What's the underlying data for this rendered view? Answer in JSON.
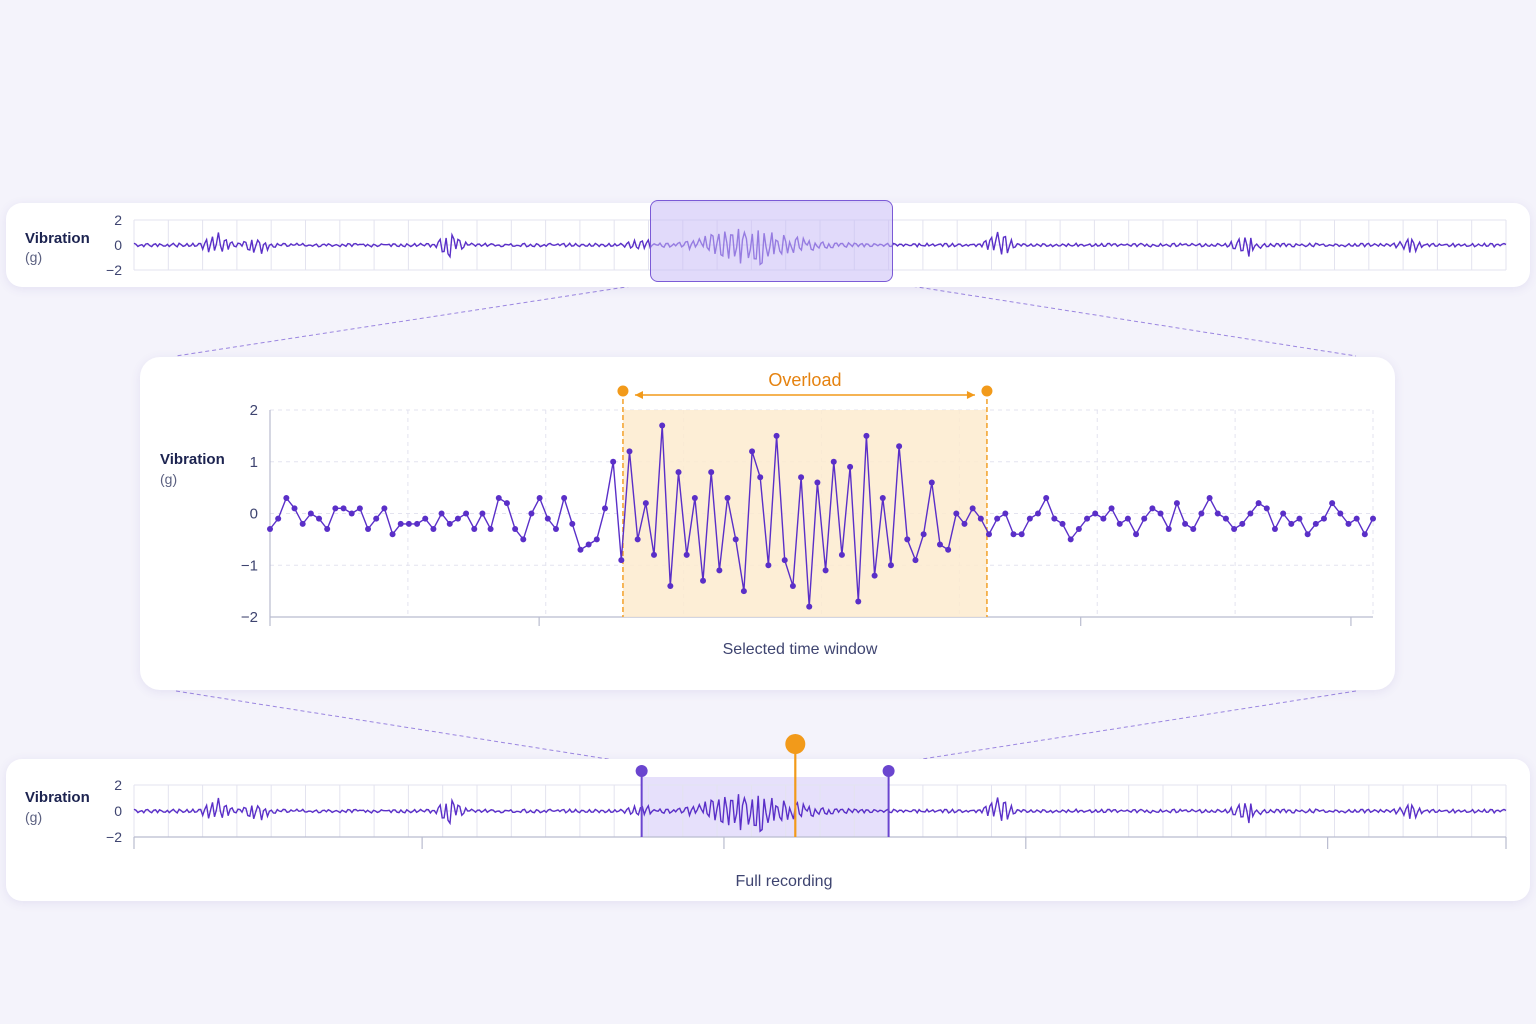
{
  "colors": {
    "signal": "#5a2fc8",
    "selection_fill": "#e6e0fb",
    "selection_border": "#7b5ad6",
    "overload": "#f29a1a",
    "overload_fill": "#fdebcf",
    "grid": "#e3e3ef",
    "axis": "#b9bccf",
    "connector": "#9b86e0"
  },
  "top_overview": {
    "ylabel": "Vibration",
    "unit": "(g)",
    "yticks": [
      "2",
      "0",
      "−2"
    ]
  },
  "detail": {
    "ylabel": "Vibration",
    "unit": "(g)",
    "caption": "Selected time window",
    "annotation": "Overload"
  },
  "full_recording": {
    "ylabel": "Vibration",
    "unit": "(g)",
    "yticks": [
      "2",
      "0",
      "−2"
    ],
    "caption": "Full recording"
  },
  "chart_data": [
    {
      "type": "line",
      "panel": "top overview",
      "ylabel": "Vibration (g)",
      "ylim": [
        -2,
        2
      ],
      "yticks": [
        2,
        0,
        -2
      ],
      "grid": true,
      "highlighted_window": "selected time window (boxed)",
      "bursts_relative_position": [
        0.06,
        0.09,
        0.23,
        0.37,
        0.45,
        0.63,
        0.81,
        0.93
      ],
      "burst_amplitude_g": [
        1.0,
        0.7,
        0.9,
        0.4,
        1.6,
        1.1,
        1.0,
        0.5
      ],
      "baseline_noise_g": 0.15
    },
    {
      "type": "line",
      "panel": "selected time window",
      "ylabel": "Vibration (g)",
      "ylim": [
        -2,
        2
      ],
      "yticks": [
        2,
        1,
        0,
        -1,
        -2
      ],
      "grid": true,
      "markers": true,
      "y": [
        -0.3,
        -0.1,
        0.3,
        0.1,
        -0.2,
        0.0,
        -0.1,
        -0.3,
        0.1,
        0.1,
        0.0,
        0.1,
        -0.3,
        -0.1,
        0.1,
        -0.4,
        -0.2,
        -0.2,
        -0.2,
        -0.1,
        -0.3,
        0.0,
        -0.2,
        -0.1,
        0.0,
        -0.3,
        0.0,
        -0.3,
        0.3,
        0.2,
        -0.3,
        -0.5,
        0.0,
        0.3,
        -0.1,
        -0.3,
        0.3,
        -0.2,
        -0.7,
        -0.6,
        -0.5,
        0.1,
        1.0,
        -0.9,
        1.2,
        -0.5,
        0.2,
        -0.8,
        1.7,
        -1.4,
        0.8,
        -0.8,
        0.3,
        -1.3,
        0.8,
        -1.1,
        0.3,
        -0.5,
        -1.5,
        1.2,
        0.7,
        -1.0,
        1.5,
        -0.9,
        -1.4,
        0.7,
        -1.8,
        0.6,
        -1.1,
        1.0,
        -0.8,
        0.9,
        -1.7,
        1.5,
        -1.2,
        0.3,
        -1.0,
        1.3,
        -0.5,
        -0.9,
        -0.4,
        0.6,
        -0.6,
        -0.7,
        0.0,
        -0.2,
        0.1,
        -0.1,
        -0.4,
        -0.1,
        0.0,
        -0.4,
        -0.4,
        -0.1,
        0.0,
        0.3,
        -0.1,
        -0.2,
        -0.5,
        -0.3,
        -0.1,
        0.0,
        -0.1,
        0.1,
        -0.2,
        -0.1,
        -0.4,
        -0.1,
        0.1,
        0.0,
        -0.3,
        0.2,
        -0.2,
        -0.3,
        0.0,
        0.3,
        0.0,
        -0.1,
        -0.3,
        -0.2,
        0.0,
        0.2,
        0.1,
        -0.3,
        0.0,
        -0.2,
        -0.1,
        -0.4,
        -0.2,
        -0.1,
        0.2,
        0.0,
        -0.2,
        -0.1,
        -0.4,
        -0.1
      ],
      "overload_region_fraction": [
        0.32,
        0.65
      ],
      "annotation": "Overload"
    },
    {
      "type": "line",
      "panel": "full recording",
      "ylabel": "Vibration (g)",
      "ylim": [
        -2,
        2
      ],
      "yticks": [
        2,
        0,
        -2
      ],
      "grid": true,
      "selection_fraction": [
        0.37,
        0.55
      ],
      "cursor_fraction": 0.482,
      "bursts_relative_position": [
        0.06,
        0.09,
        0.23,
        0.37,
        0.45,
        0.63,
        0.81,
        0.93
      ],
      "burst_amplitude_g": [
        1.0,
        0.7,
        0.9,
        0.4,
        1.6,
        1.1,
        1.0,
        0.5
      ],
      "baseline_noise_g": 0.15
    }
  ]
}
